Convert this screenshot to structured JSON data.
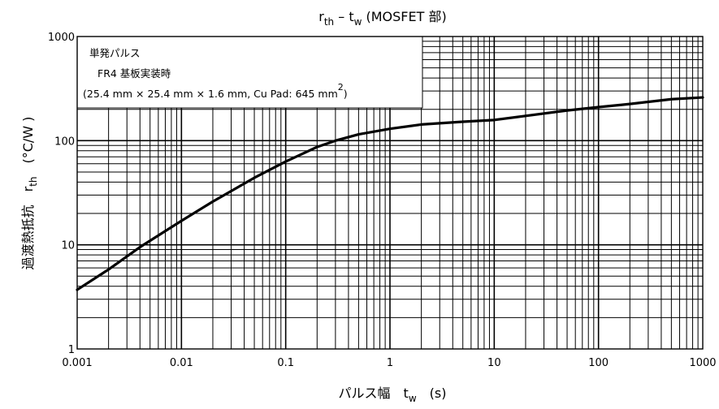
{
  "chart_data": {
    "type": "line",
    "title": {
      "main": "r",
      "sub1": "th",
      "dash": " – t",
      "sub2": "w",
      "tail": " (MOSFET 部)"
    },
    "xlabel": {
      "main": "パルス幅　t",
      "sub": "w",
      "tail": "　(s)"
    },
    "ylabel": {
      "main": "過渡熱抵抗　r",
      "sub": "th",
      "tail": "　(°C/W )"
    },
    "x_scale": "log",
    "y_scale": "log",
    "xlim": [
      0.001,
      1000
    ],
    "ylim": [
      1,
      1000
    ],
    "x_ticks": [
      {
        "value": 0.001,
        "label": "0.001"
      },
      {
        "value": 0.01,
        "label": "0.01"
      },
      {
        "value": 0.1,
        "label": "0.1"
      },
      {
        "value": 1,
        "label": "1"
      },
      {
        "value": 10,
        "label": "10"
      },
      {
        "value": 100,
        "label": "100"
      },
      {
        "value": 1000,
        "label": "1000"
      }
    ],
    "y_ticks": [
      {
        "value": 1,
        "label": "1"
      },
      {
        "value": 10,
        "label": "10"
      },
      {
        "value": 100,
        "label": "100"
      },
      {
        "value": 1000,
        "label": "1000"
      }
    ],
    "grid": "log minor + major",
    "legend_box": {
      "line1": "単発パルス",
      "line2": "FR4 基板実装時",
      "line3": "(25.4 mm × 25.4 mm × 1.6 mm, Cu Pad: 645 mm",
      "line3_sup": "2",
      "line3_end": ")"
    },
    "series": [
      {
        "x": [
          0.001,
          0.002,
          0.004,
          0.01,
          0.02,
          0.05,
          0.1,
          0.2,
          0.3,
          0.5,
          1,
          2,
          5,
          10,
          20,
          50,
          100,
          200,
          500,
          1000
        ],
        "y": [
          3.7,
          5.8,
          9.5,
          17,
          26,
          44,
          63,
          87,
          100,
          115,
          130,
          143,
          152,
          158,
          173,
          195,
          210,
          225,
          250,
          260
        ]
      }
    ]
  }
}
